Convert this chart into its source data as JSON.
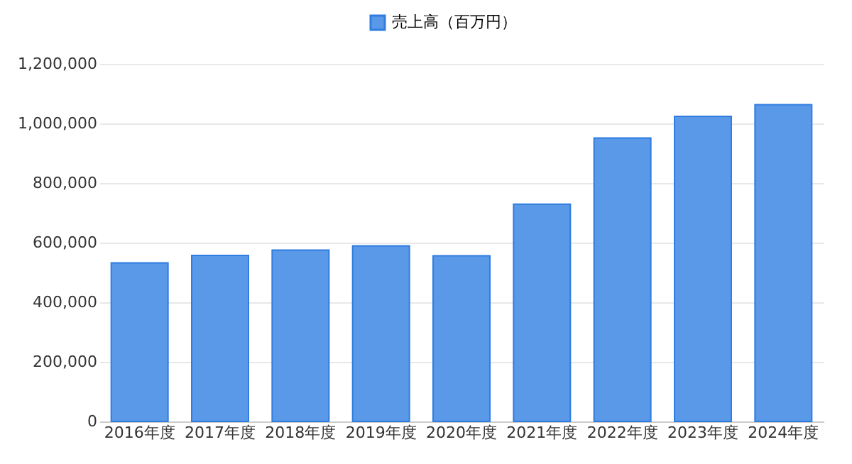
{
  "chart_data": {
    "type": "bar",
    "categories": [
      "2016年度",
      "2017年度",
      "2018年度",
      "2019年度",
      "2020年度",
      "2021年度",
      "2022年度",
      "2023年度",
      "2024年度"
    ],
    "series": [
      {
        "name": "売上高（百万円）",
        "color": "#5a98e8",
        "values": [
          532000,
          557000,
          575000,
          589000,
          556000,
          729000,
          951000,
          1024000,
          1063000
        ]
      }
    ],
    "ylim": [
      0,
      1200000
    ],
    "yticks": [
      0,
      {
        "value": 200000,
        "label": "200,000"
      },
      {
        "value": 400000,
        "label": "400,000"
      },
      {
        "value": 600000,
        "label": "600,000"
      },
      {
        "value": 800000,
        "label": "800,000"
      },
      {
        "value": 1000000,
        "label": "1,000,000"
      },
      {
        "value": 1200000,
        "label": "1,200,000"
      }
    ],
    "grid": "y",
    "legend": "top"
  }
}
